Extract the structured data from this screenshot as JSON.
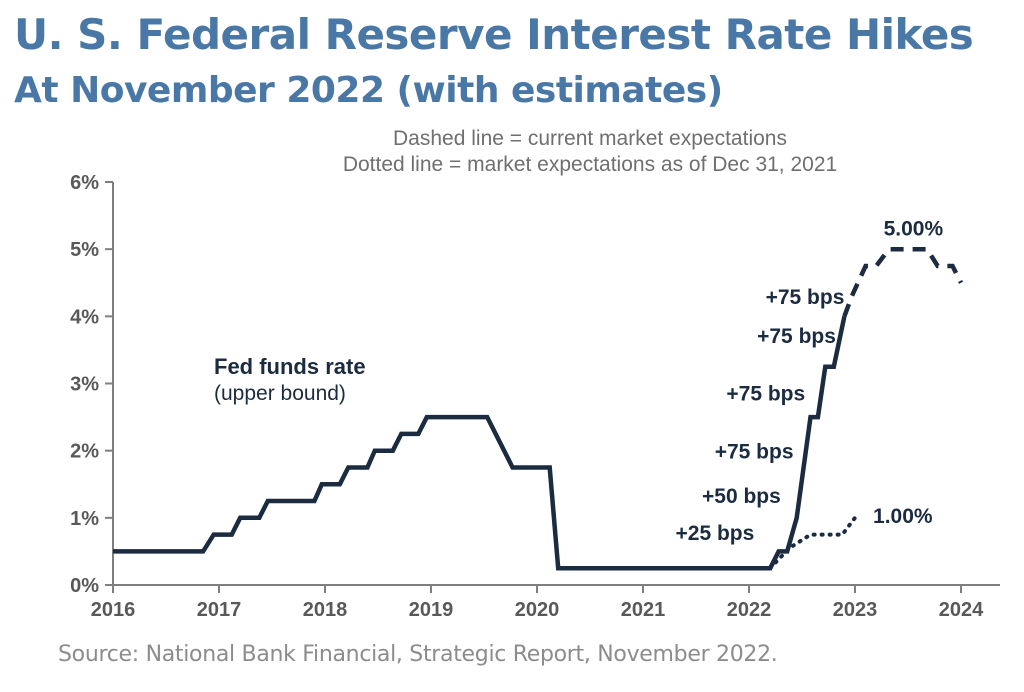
{
  "header": {
    "title": "U. S.  Federal Reserve Interest Rate Hikes",
    "subtitle": "At November 2022 (with estimates)"
  },
  "notes": {
    "dashed": "Dashed line = current market expectations",
    "dotted": "Dotted line = market expectations as of Dec 31, 2021"
  },
  "source": "Source: National Bank Financial, Strategic Report, November 2022.",
  "colors": {
    "title": "#4a78a6",
    "series": "#1b2b40",
    "axis": "#7f7f7f",
    "tick_text": "#595959"
  },
  "chart_data": {
    "type": "line",
    "xlim": [
      2016,
      2024.4
    ],
    "ylim": [
      0,
      6
    ],
    "x_ticks": [
      2016,
      2017,
      2018,
      2019,
      2020,
      2021,
      2022,
      2023,
      2024
    ],
    "x_tick_labels": [
      "2016",
      "2017",
      "2018",
      "2019",
      "2020",
      "2021",
      "2022",
      "2023",
      "2024"
    ],
    "y_ticks": [
      0,
      1,
      2,
      3,
      4,
      5,
      6
    ],
    "y_tick_labels": [
      "0%",
      "1%",
      "2%",
      "3%",
      "4%",
      "5%",
      "6%"
    ],
    "grid": false,
    "series_label": {
      "name": "Fed funds rate",
      "sub": "(upper bound)"
    },
    "series": [
      {
        "key": "fed_funds_rate",
        "style": "solid",
        "points": [
          [
            2016.0,
            0.5
          ],
          [
            2016.85,
            0.5
          ],
          [
            2016.95,
            0.75
          ],
          [
            2017.12,
            0.75
          ],
          [
            2017.2,
            1.0
          ],
          [
            2017.38,
            1.0
          ],
          [
            2017.46,
            1.25
          ],
          [
            2017.9,
            1.25
          ],
          [
            2017.97,
            1.5
          ],
          [
            2018.14,
            1.5
          ],
          [
            2018.22,
            1.75
          ],
          [
            2018.4,
            1.75
          ],
          [
            2018.47,
            2.0
          ],
          [
            2018.64,
            2.0
          ],
          [
            2018.72,
            2.25
          ],
          [
            2018.88,
            2.25
          ],
          [
            2018.96,
            2.5
          ],
          [
            2019.53,
            2.5
          ],
          [
            2019.77,
            1.75
          ],
          [
            2020.12,
            1.75
          ],
          [
            2020.2,
            0.25
          ],
          [
            2022.2,
            0.25
          ],
          [
            2022.28,
            0.5
          ],
          [
            2022.36,
            0.5
          ],
          [
            2022.45,
            1.0
          ],
          [
            2022.58,
            2.5
          ],
          [
            2022.65,
            2.5
          ],
          [
            2022.72,
            3.25
          ],
          [
            2022.8,
            3.25
          ],
          [
            2022.9,
            4.0
          ]
        ]
      },
      {
        "key": "current_expectations",
        "style": "dashed",
        "points": [
          [
            2022.9,
            4.0
          ],
          [
            2022.97,
            4.3
          ],
          [
            2023.1,
            4.75
          ],
          [
            2023.2,
            4.75
          ],
          [
            2023.32,
            5.0
          ],
          [
            2023.68,
            5.0
          ],
          [
            2023.78,
            4.75
          ],
          [
            2023.92,
            4.75
          ],
          [
            2024.0,
            4.5
          ]
        ]
      },
      {
        "key": "dec2021_expectations",
        "style": "dotted",
        "points": [
          [
            2022.2,
            0.25
          ],
          [
            2022.38,
            0.55
          ],
          [
            2022.58,
            0.75
          ],
          [
            2022.88,
            0.75
          ],
          [
            2023.0,
            1.0
          ]
        ]
      }
    ],
    "annotations": [
      {
        "text": "+25 bps",
        "x": 2022.05,
        "y": 0.67,
        "anchor": "end"
      },
      {
        "text": "+50 bps",
        "x": 2022.3,
        "y": 1.22,
        "anchor": "end"
      },
      {
        "text": "+75 bps",
        "x": 2022.42,
        "y": 1.88,
        "anchor": "end"
      },
      {
        "text": "+75 bps",
        "x": 2022.53,
        "y": 2.75,
        "anchor": "end"
      },
      {
        "text": "+75 bps",
        "x": 2022.82,
        "y": 3.6,
        "anchor": "end"
      },
      {
        "text": "+75 bps",
        "x": 2022.9,
        "y": 4.18,
        "anchor": "end"
      },
      {
        "text": "5.00%",
        "x": 2023.27,
        "y": 5.2,
        "anchor": "start"
      },
      {
        "text": "1.00%",
        "x": 2023.17,
        "y": 0.92,
        "anchor": "start"
      }
    ]
  }
}
